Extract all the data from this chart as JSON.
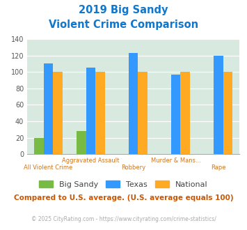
{
  "title_line1": "2019 Big Sandy",
  "title_line2": "Violent Crime Comparison",
  "top_labels": [
    "",
    "Aggravated Assault",
    "",
    "Murder & Mans...",
    ""
  ],
  "bottom_labels": [
    "All Violent Crime",
    "",
    "Robbery",
    "",
    "Rape"
  ],
  "big_sandy": [
    20,
    28,
    0,
    0,
    0
  ],
  "texas": [
    110,
    105,
    123,
    97,
    120
  ],
  "national": [
    100,
    100,
    100,
    100,
    100
  ],
  "big_sandy_color": "#77bb44",
  "texas_color": "#3399ff",
  "national_color": "#ffaa22",
  "ylim": [
    0,
    140
  ],
  "yticks": [
    0,
    20,
    40,
    60,
    80,
    100,
    120,
    140
  ],
  "plot_bg_color": "#d8eae0",
  "title_color": "#1177cc",
  "axis_label_color": "#cc7722",
  "legend_labels": [
    "Big Sandy",
    "Texas",
    "National"
  ],
  "footer_text": "Compared to U.S. average. (U.S. average equals 100)",
  "copyright_text": "© 2025 CityRating.com - https://www.cityrating.com/crime-statistics/",
  "footer_color": "#cc5500",
  "copyright_color": "#aaaaaa"
}
